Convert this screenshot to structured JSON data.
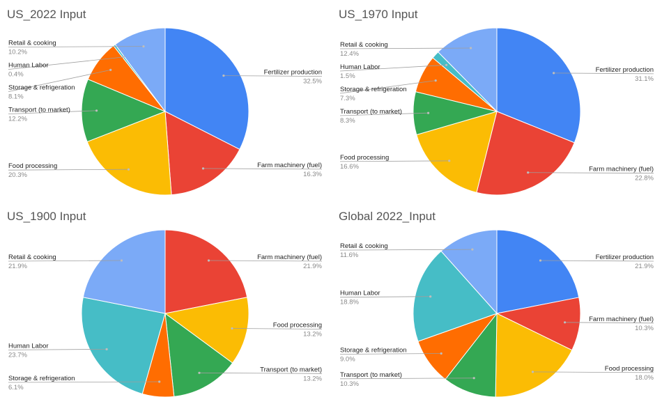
{
  "chart_data": [
    {
      "type": "pie",
      "title": "US_2022 Input",
      "slices": [
        {
          "name": "Fertilizer production",
          "value": 32.5,
          "label": "32.5%",
          "color": "#4285F4",
          "side": "right"
        },
        {
          "name": "Farm machinery (fuel)",
          "value": 16.3,
          "label": "16.3%",
          "color": "#EA4335",
          "side": "right"
        },
        {
          "name": "Food processing",
          "value": 20.3,
          "label": "20.3%",
          "color": "#FBBC04",
          "side": "left"
        },
        {
          "name": "Transport (to market)",
          "value": 12.2,
          "label": "12.2%",
          "color": "#34A853",
          "side": "left"
        },
        {
          "name": "Storage & refrigeration",
          "value": 8.1,
          "label": "8.1%",
          "color": "#FF6D01",
          "side": "left"
        },
        {
          "name": "Human Labor",
          "value": 0.4,
          "label": "0.4%",
          "color": "#46BDC6",
          "side": "left"
        },
        {
          "name": "Retail & cooking",
          "value": 10.2,
          "label": "10.2%",
          "color": "#7BAAF7",
          "side": "left"
        }
      ]
    },
    {
      "type": "pie",
      "title": "US_1970 Input",
      "slices": [
        {
          "name": "Fertilizer production",
          "value": 31.1,
          "label": "31.1%",
          "color": "#4285F4",
          "side": "right"
        },
        {
          "name": "Farm machinery (fuel)",
          "value": 22.8,
          "label": "22.8%",
          "color": "#EA4335",
          "side": "right"
        },
        {
          "name": "Food processing",
          "value": 16.6,
          "label": "16.6%",
          "color": "#FBBC04",
          "side": "left"
        },
        {
          "name": "Transport (to market)",
          "value": 8.3,
          "label": "8.3%",
          "color": "#34A853",
          "side": "left"
        },
        {
          "name": "Storage & refrigeration",
          "value": 7.3,
          "label": "7.3%",
          "color": "#FF6D01",
          "side": "left"
        },
        {
          "name": "Human Labor",
          "value": 1.5,
          "label": "1.5%",
          "color": "#46BDC6",
          "side": "left"
        },
        {
          "name": "Retail & cooking",
          "value": 12.4,
          "label": "12.4%",
          "color": "#7BAAF7",
          "side": "left"
        }
      ]
    },
    {
      "type": "pie",
      "title": "US_1900 Input",
      "slices": [
        {
          "name": "Farm machinery (fuel)",
          "value": 21.9,
          "label": "21.9%",
          "color": "#EA4335",
          "side": "right"
        },
        {
          "name": "Food processing",
          "value": 13.2,
          "label": "13.2%",
          "color": "#FBBC04",
          "side": "right"
        },
        {
          "name": "Transport (to market)",
          "value": 13.2,
          "label": "13.2%",
          "color": "#34A853",
          "side": "right"
        },
        {
          "name": "Storage & refrigeration",
          "value": 6.1,
          "label": "6.1%",
          "color": "#FF6D01",
          "side": "left"
        },
        {
          "name": "Human Labor",
          "value": 23.7,
          "label": "23.7%",
          "color": "#46BDC6",
          "side": "left"
        },
        {
          "name": "Retail & cooking",
          "value": 21.9,
          "label": "21.9%",
          "color": "#7BAAF7",
          "side": "left"
        }
      ]
    },
    {
      "type": "pie",
      "title": "Global 2022_Input",
      "slices": [
        {
          "name": "Fertilizer production",
          "value": 21.9,
          "label": "21.9%",
          "color": "#4285F4",
          "side": "right"
        },
        {
          "name": "Farm machinery (fuel)",
          "value": 10.3,
          "label": "10.3%",
          "color": "#EA4335",
          "side": "right"
        },
        {
          "name": "Food processing",
          "value": 18.0,
          "label": "18.0%",
          "color": "#FBBC04",
          "side": "right"
        },
        {
          "name": "Transport (to market)",
          "value": 10.3,
          "label": "10.3%",
          "color": "#34A853",
          "side": "left"
        },
        {
          "name": "Storage & refrigeration",
          "value": 9.0,
          "label": "9.0%",
          "color": "#FF6D01",
          "side": "left"
        },
        {
          "name": "Human Labor",
          "value": 18.8,
          "label": "18.8%",
          "color": "#46BDC6",
          "side": "left"
        },
        {
          "name": "Retail & cooking",
          "value": 11.6,
          "label": "11.6%",
          "color": "#7BAAF7",
          "side": "left"
        }
      ]
    }
  ]
}
